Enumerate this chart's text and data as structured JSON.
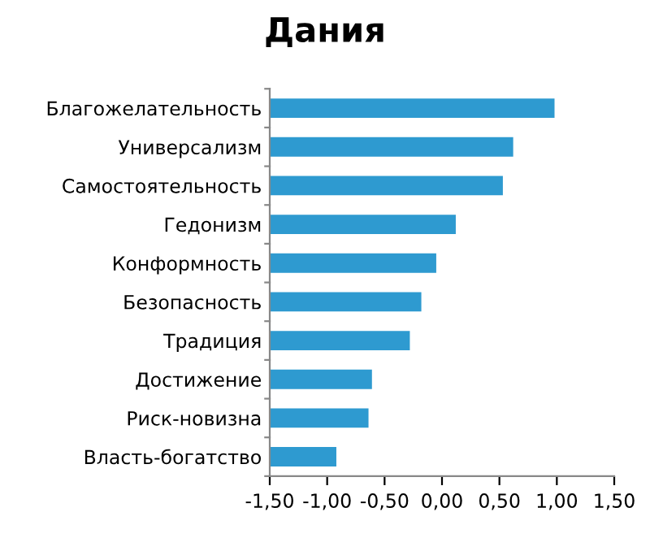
{
  "chart_data": {
    "type": "bar",
    "title": "Дания",
    "orientation": "horizontal",
    "categories": [
      "Благожелательность",
      "Универсализм",
      "Самостоятельность",
      "Гедонизм",
      "Конформность",
      "Безопасность",
      "Традиция",
      "Достижение",
      "Риск-новизна",
      "Власть-богатство"
    ],
    "values": [
      2.48,
      2.12,
      2.03,
      1.62,
      1.45,
      1.32,
      1.22,
      0.89,
      0.86,
      0.58
    ],
    "base": [
      -1.5,
      -1.5,
      -1.5,
      -1.5,
      -1.5,
      -1.5,
      -1.5,
      -1.5,
      -1.5,
      -1.5
    ],
    "color": "#2e9ad0",
    "xlim": [
      -1.5,
      1.5
    ],
    "xticks": [
      {
        "value": -1.5,
        "label": "-1,50"
      },
      {
        "value": -1.0,
        "label": "-1,00"
      },
      {
        "value": -0.5,
        "label": "-0,50"
      },
      {
        "value": 0.0,
        "label": "0,00"
      },
      {
        "value": 0.5,
        "label": "0,50"
      },
      {
        "value": 1.0,
        "label": "1,00"
      },
      {
        "value": 1.5,
        "label": "1,50"
      }
    ],
    "grid": false
  }
}
